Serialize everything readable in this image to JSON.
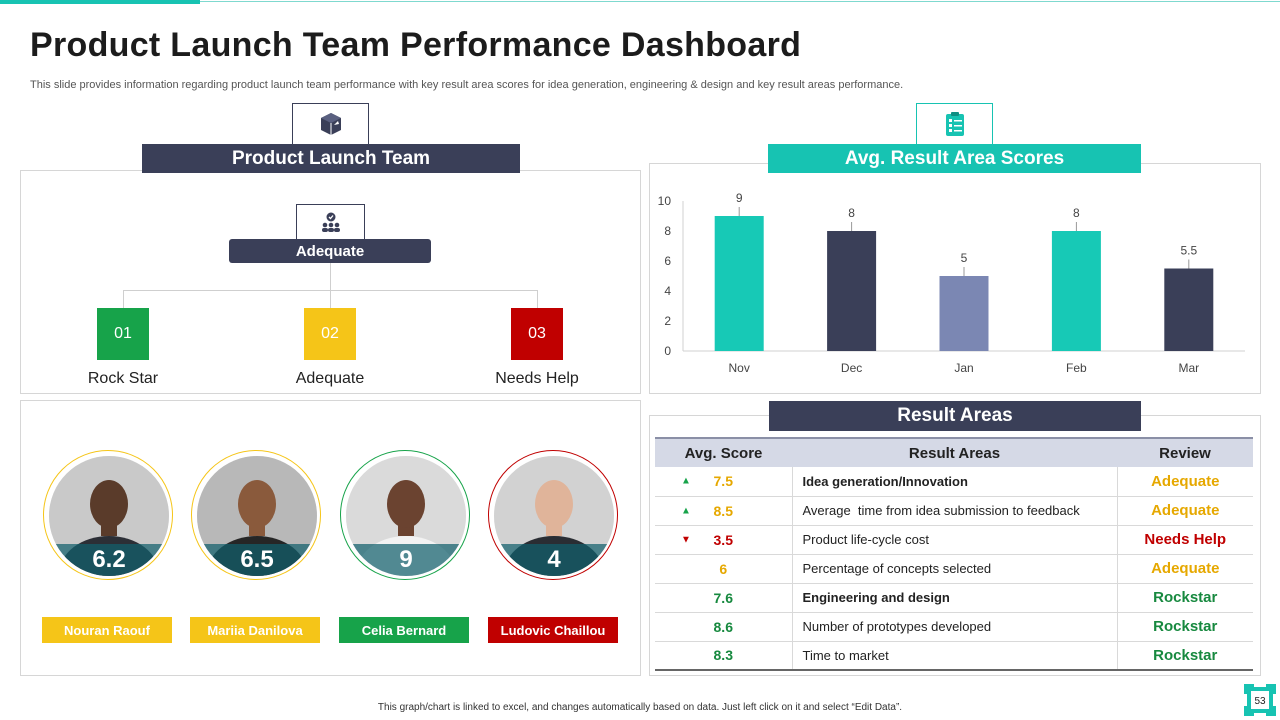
{
  "title": "Product Launch Team Performance Dashboard",
  "subtitle": "This slide provides information regarding product launch team performance with key result area scores for idea generation, engineering & design and key result areas performance.",
  "team_panel": {
    "header": "Product Launch Team",
    "header_icon": "rocket-cube-icon",
    "top_icon": "team-check-icon",
    "top_label": "Adequate",
    "levels": [
      {
        "num": "01",
        "label": "Rock Star",
        "color": "#17a34a"
      },
      {
        "num": "02",
        "label": "Adequate",
        "color": "#f5c518"
      },
      {
        "num": "03",
        "label": "Needs Help",
        "color": "#c00000"
      }
    ]
  },
  "people": [
    {
      "name": "Nouran Raouf",
      "score": "6.2",
      "ring_color": "#f5c518",
      "tag_color": "#f5c518"
    },
    {
      "name": "Mariia Danilova",
      "score": "6.5",
      "ring_color": "#f5c518",
      "tag_color": "#f5c518"
    },
    {
      "name": "Celia Bernard",
      "score": "9",
      "ring_color": "#17a34a",
      "tag_color": "#17a34a"
    },
    {
      "name": "Ludovic Chaillou",
      "score": "4",
      "ring_color": "#c00000",
      "tag_color": "#c00000"
    }
  ],
  "scores_panel": {
    "header": "Avg. Result Area Scores",
    "header_icon": "clipboard-checklist-icon"
  },
  "chart_data": {
    "type": "bar",
    "categories": [
      "Nov",
      "Dec",
      "Jan",
      "Feb",
      "Mar"
    ],
    "values": [
      9,
      8,
      5,
      8,
      5.5
    ],
    "data_labels": [
      "9",
      "8",
      "5",
      "8",
      "5.5"
    ],
    "bar_colors": [
      "#17c9b6",
      "#3a3f58",
      "#7b87b3",
      "#17c9b6",
      "#3a3f58"
    ],
    "yticks": [
      0,
      2,
      4,
      6,
      8,
      10
    ],
    "ylim": [
      0,
      10
    ],
    "grid": false,
    "title": "",
    "xlabel": "",
    "ylabel": ""
  },
  "result_panel": {
    "header": "Result Areas",
    "columns": [
      "Avg. Score",
      "Result Areas",
      "Review"
    ],
    "rows": [
      {
        "trend": "up",
        "score": "7.5",
        "area": "Idea generation/Innovation",
        "bold": true,
        "review": "Adequate",
        "score_color": "#e6a800",
        "review_color": "#e6a800"
      },
      {
        "trend": "up",
        "score": "8.5",
        "area": "Average  time from idea submission to feedback",
        "bold": false,
        "review": "Adequate",
        "score_color": "#e6a800",
        "review_color": "#e6a800"
      },
      {
        "trend": "down",
        "score": "3.5",
        "area": "Product life-cycle cost",
        "bold": false,
        "review": "Needs Help",
        "score_color": "#c00000",
        "review_color": "#c00000"
      },
      {
        "trend": "",
        "score": "6",
        "area": "Percentage of concepts selected",
        "bold": false,
        "review": "Adequate",
        "score_color": "#e6a800",
        "review_color": "#e6a800"
      },
      {
        "trend": "",
        "score": "7.6",
        "area": "Engineering and design",
        "bold": true,
        "review": "Rockstar",
        "score_color": "#17893f",
        "review_color": "#17893f"
      },
      {
        "trend": "",
        "score": "8.6",
        "area": "Number of prototypes developed",
        "bold": false,
        "review": "Rockstar",
        "score_color": "#17893f",
        "review_color": "#17893f"
      },
      {
        "trend": "",
        "score": "8.3",
        "area": "Time to market",
        "bold": false,
        "review": "Rockstar",
        "score_color": "#17893f",
        "review_color": "#17893f"
      }
    ]
  },
  "footer": "This graph/chart is linked to excel, and changes automatically based on data. Just left click on it and select “Edit Data”.",
  "page_number": "53",
  "colors": {
    "navy": "#3a3f58",
    "teal": "#17c3b2",
    "up_arrow": "#17a34a",
    "down_arrow": "#c00000"
  }
}
